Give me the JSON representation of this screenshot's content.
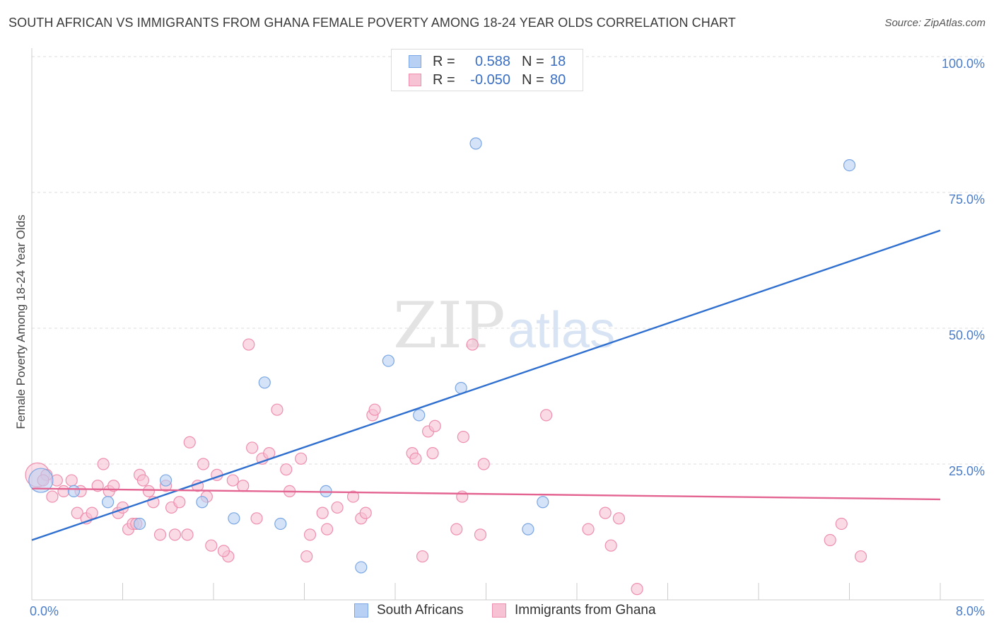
{
  "title": "SOUTH AFRICAN VS IMMIGRANTS FROM GHANA FEMALE POVERTY AMONG 18-24 YEAR OLDS CORRELATION CHART",
  "source": "Source: ZipAtlas.com",
  "watermark": {
    "zip": "ZIP",
    "atlas": "atlas"
  },
  "legend": {
    "rows": [
      {
        "r_label": "R =",
        "r_value": "0.588",
        "n_label": "N =",
        "n_value": "18"
      },
      {
        "r_label": "R =",
        "r_value": "-0.050",
        "n_label": "N =",
        "n_value": "80"
      }
    ]
  },
  "bottom_legend": [
    "South Africans",
    "Immigrants from Ghana"
  ],
  "colors": {
    "blue_fill": "#b8d0f4",
    "blue_stroke": "#7aa6e3",
    "blue_line": "#2f6fcf",
    "pink_fill": "#f7c2d3",
    "pink_stroke": "#ee8fae",
    "pink_line": "#e36491",
    "grid": "#dddddd",
    "tick_text": "#4a7cc8"
  },
  "chart_data": {
    "type": "scatter",
    "title": "SOUTH AFRICAN VS IMMIGRANTS FROM GHANA FEMALE POVERTY AMONG 18-24 YEAR OLDS CORRELATION CHART",
    "xlabel": "",
    "ylabel": "Female Poverty Among 18-24 Year Olds",
    "xlim": [
      0,
      8
    ],
    "ylim": [
      0,
      100
    ],
    "x_tick_labels": [
      "0.0%",
      "8.0%"
    ],
    "y_tick_labels": [
      "25.0%",
      "50.0%",
      "75.0%",
      "100.0%"
    ],
    "y_ticks": [
      25,
      50,
      75,
      100
    ],
    "grid": true,
    "legend_position": "top-center",
    "series": [
      {
        "name": "South Africans",
        "r": 0.588,
        "n": 18,
        "trend": {
          "x": [
            0,
            8
          ],
          "y": [
            11,
            68
          ]
        },
        "points": [
          {
            "x": 0.08,
            "y": 22,
            "big": true
          },
          {
            "x": 0.37,
            "y": 20
          },
          {
            "x": 0.67,
            "y": 18
          },
          {
            "x": 0.95,
            "y": 14
          },
          {
            "x": 1.18,
            "y": 22
          },
          {
            "x": 1.5,
            "y": 18
          },
          {
            "x": 1.78,
            "y": 15
          },
          {
            "x": 2.05,
            "y": 40
          },
          {
            "x": 2.19,
            "y": 14
          },
          {
            "x": 2.59,
            "y": 20
          },
          {
            "x": 2.9,
            "y": 6
          },
          {
            "x": 3.14,
            "y": 44
          },
          {
            "x": 3.41,
            "y": 34
          },
          {
            "x": 3.78,
            "y": 39
          },
          {
            "x": 3.91,
            "y": 84
          },
          {
            "x": 4.5,
            "y": 18
          },
          {
            "x": 4.37,
            "y": 13
          },
          {
            "x": 7.2,
            "y": 80
          }
        ]
      },
      {
        "name": "Immigrants from Ghana",
        "r": -0.05,
        "n": 80,
        "trend": {
          "x": [
            0,
            8
          ],
          "y": [
            20.5,
            18.5
          ]
        },
        "points": [
          {
            "x": 0.05,
            "y": 23,
            "big": true
          },
          {
            "x": 0.13,
            "y": 23
          },
          {
            "x": 0.18,
            "y": 19
          },
          {
            "x": 0.22,
            "y": 22
          },
          {
            "x": 0.28,
            "y": 20
          },
          {
            "x": 0.35,
            "y": 22
          },
          {
            "x": 0.4,
            "y": 16
          },
          {
            "x": 0.43,
            "y": 20
          },
          {
            "x": 0.48,
            "y": 15
          },
          {
            "x": 0.53,
            "y": 16
          },
          {
            "x": 0.58,
            "y": 21
          },
          {
            "x": 0.63,
            "y": 25
          },
          {
            "x": 0.68,
            "y": 20
          },
          {
            "x": 0.72,
            "y": 21
          },
          {
            "x": 0.76,
            "y": 16
          },
          {
            "x": 0.8,
            "y": 17
          },
          {
            "x": 0.85,
            "y": 13
          },
          {
            "x": 0.89,
            "y": 14
          },
          {
            "x": 0.95,
            "y": 23
          },
          {
            "x": 0.98,
            "y": 22
          },
          {
            "x": 1.03,
            "y": 20
          },
          {
            "x": 1.07,
            "y": 18
          },
          {
            "x": 1.13,
            "y": 12
          },
          {
            "x": 1.18,
            "y": 21
          },
          {
            "x": 1.23,
            "y": 17
          },
          {
            "x": 1.26,
            "y": 12
          },
          {
            "x": 1.3,
            "y": 18
          },
          {
            "x": 1.37,
            "y": 12
          },
          {
            "x": 1.39,
            "y": 29
          },
          {
            "x": 1.46,
            "y": 21
          },
          {
            "x": 1.51,
            "y": 25
          },
          {
            "x": 1.54,
            "y": 19
          },
          {
            "x": 1.58,
            "y": 10
          },
          {
            "x": 1.63,
            "y": 23
          },
          {
            "x": 1.73,
            "y": 8
          },
          {
            "x": 1.77,
            "y": 22
          },
          {
            "x": 1.86,
            "y": 21
          },
          {
            "x": 1.91,
            "y": 47
          },
          {
            "x": 1.94,
            "y": 28
          },
          {
            "x": 1.98,
            "y": 15
          },
          {
            "x": 2.03,
            "y": 26
          },
          {
            "x": 2.09,
            "y": 27
          },
          {
            "x": 2.16,
            "y": 35
          },
          {
            "x": 2.24,
            "y": 24
          },
          {
            "x": 2.27,
            "y": 20
          },
          {
            "x": 2.37,
            "y": 26
          },
          {
            "x": 2.42,
            "y": 8
          },
          {
            "x": 2.45,
            "y": 12
          },
          {
            "x": 2.56,
            "y": 16
          },
          {
            "x": 2.6,
            "y": 13
          },
          {
            "x": 2.69,
            "y": 17
          },
          {
            "x": 2.83,
            "y": 19
          },
          {
            "x": 2.9,
            "y": 15
          },
          {
            "x": 2.94,
            "y": 16
          },
          {
            "x": 3.0,
            "y": 34
          },
          {
            "x": 3.02,
            "y": 35
          },
          {
            "x": 3.35,
            "y": 27
          },
          {
            "x": 3.38,
            "y": 26
          },
          {
            "x": 3.44,
            "y": 8
          },
          {
            "x": 3.49,
            "y": 31
          },
          {
            "x": 3.53,
            "y": 27
          },
          {
            "x": 3.55,
            "y": 32
          },
          {
            "x": 3.74,
            "y": 13
          },
          {
            "x": 3.79,
            "y": 19
          },
          {
            "x": 3.8,
            "y": 30
          },
          {
            "x": 3.88,
            "y": 47
          },
          {
            "x": 3.95,
            "y": 12
          },
          {
            "x": 3.98,
            "y": 25
          },
          {
            "x": 4.53,
            "y": 34
          },
          {
            "x": 4.9,
            "y": 13
          },
          {
            "x": 5.05,
            "y": 16
          },
          {
            "x": 5.1,
            "y": 10
          },
          {
            "x": 5.17,
            "y": 15
          },
          {
            "x": 5.33,
            "y": 2
          },
          {
            "x": 7.03,
            "y": 11
          },
          {
            "x": 7.13,
            "y": 14
          },
          {
            "x": 7.3,
            "y": 8
          },
          {
            "x": 0.1,
            "y": 22
          },
          {
            "x": 0.92,
            "y": 14
          },
          {
            "x": 1.69,
            "y": 9
          }
        ]
      }
    ]
  }
}
